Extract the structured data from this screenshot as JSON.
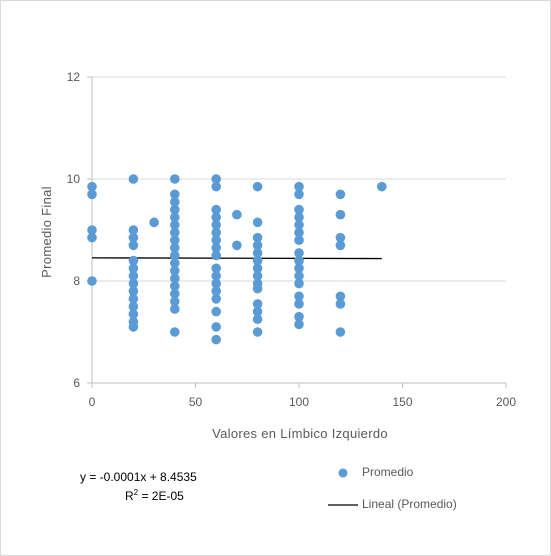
{
  "chart_data": {
    "type": "scatter",
    "xlabel": "Valores en Límbico Izquierdo",
    "ylabel": "Promedio Final",
    "xlim": [
      0,
      200
    ],
    "ylim": [
      6,
      12
    ],
    "x_ticks": [
      "0",
      "50",
      "100",
      "150",
      "200"
    ],
    "y_ticks": [
      "6",
      "8",
      "10",
      "12"
    ],
    "grid": "horizontal",
    "legend_position": "bottom-right",
    "series": [
      {
        "name": "Promedio",
        "color": "#5b9bd5",
        "points": [
          [
            0,
            9.85
          ],
          [
            0,
            9.7
          ],
          [
            0,
            9.0
          ],
          [
            0,
            8.85
          ],
          [
            0,
            8.0
          ],
          [
            20,
            10.0
          ],
          [
            20,
            9.0
          ],
          [
            20,
            8.85
          ],
          [
            20,
            8.7
          ],
          [
            20,
            8.4
          ],
          [
            20,
            8.25
          ],
          [
            20,
            8.1
          ],
          [
            20,
            7.95
          ],
          [
            20,
            7.8
          ],
          [
            20,
            7.65
          ],
          [
            20,
            7.5
          ],
          [
            20,
            7.35
          ],
          [
            20,
            7.2
          ],
          [
            20,
            7.1
          ],
          [
            30,
            9.15
          ],
          [
            40,
            10.0
          ],
          [
            40,
            9.7
          ],
          [
            40,
            9.55
          ],
          [
            40,
            9.4
          ],
          [
            40,
            9.25
          ],
          [
            40,
            9.1
          ],
          [
            40,
            8.95
          ],
          [
            40,
            8.8
          ],
          [
            40,
            8.65
          ],
          [
            40,
            8.5
          ],
          [
            40,
            8.35
          ],
          [
            40,
            8.2
          ],
          [
            40,
            8.05
          ],
          [
            40,
            7.9
          ],
          [
            40,
            7.75
          ],
          [
            40,
            7.6
          ],
          [
            40,
            7.45
          ],
          [
            40,
            7.0
          ],
          [
            60,
            10.0
          ],
          [
            60,
            9.85
          ],
          [
            60,
            9.4
          ],
          [
            60,
            9.25
          ],
          [
            60,
            9.1
          ],
          [
            60,
            8.95
          ],
          [
            60,
            8.8
          ],
          [
            60,
            8.65
          ],
          [
            60,
            8.5
          ],
          [
            60,
            8.25
          ],
          [
            60,
            8.1
          ],
          [
            60,
            7.95
          ],
          [
            60,
            7.8
          ],
          [
            60,
            7.65
          ],
          [
            60,
            7.4
          ],
          [
            60,
            7.1
          ],
          [
            60,
            6.85
          ],
          [
            70,
            9.3
          ],
          [
            70,
            8.7
          ],
          [
            80,
            9.85
          ],
          [
            80,
            9.15
          ],
          [
            80,
            8.85
          ],
          [
            80,
            8.7
          ],
          [
            80,
            8.55
          ],
          [
            80,
            8.4
          ],
          [
            80,
            8.25
          ],
          [
            80,
            8.1
          ],
          [
            80,
            7.95
          ],
          [
            80,
            7.85
          ],
          [
            80,
            7.55
          ],
          [
            80,
            7.4
          ],
          [
            80,
            7.25
          ],
          [
            80,
            7.0
          ],
          [
            100,
            9.85
          ],
          [
            100,
            9.7
          ],
          [
            100,
            9.4
          ],
          [
            100,
            9.25
          ],
          [
            100,
            9.1
          ],
          [
            100,
            8.95
          ],
          [
            100,
            8.8
          ],
          [
            100,
            8.55
          ],
          [
            100,
            8.4
          ],
          [
            100,
            8.25
          ],
          [
            100,
            8.1
          ],
          [
            100,
            7.95
          ],
          [
            100,
            7.7
          ],
          [
            100,
            7.55
          ],
          [
            100,
            7.3
          ],
          [
            100,
            7.15
          ],
          [
            120,
            9.7
          ],
          [
            120,
            9.3
          ],
          [
            120,
            8.85
          ],
          [
            120,
            8.7
          ],
          [
            120,
            7.7
          ],
          [
            120,
            7.55
          ],
          [
            120,
            7.0
          ],
          [
            140,
            9.85
          ]
        ]
      },
      {
        "name": "Lineal (Promedio)",
        "color": "#000000",
        "trendline": {
          "slope": -0.0001,
          "intercept": 8.4535,
          "x_range": [
            0,
            140
          ]
        }
      }
    ],
    "annotations": {
      "equation": "y = -0.0001x + 8.4535",
      "r2_prefix": "R",
      "r2_exp": "2",
      "r2_value": " = 2E-05"
    }
  }
}
